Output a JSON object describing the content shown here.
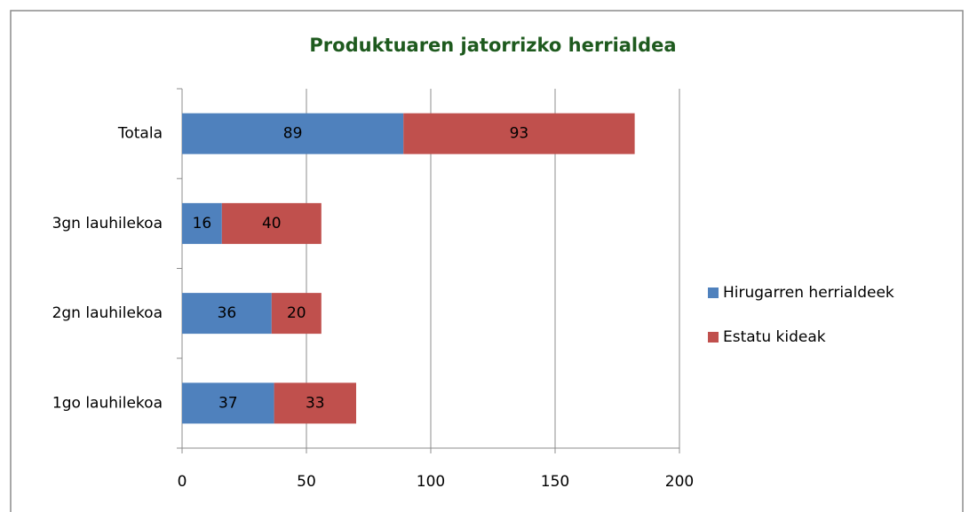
{
  "chart_data": {
    "type": "bar",
    "orientation": "horizontal",
    "stacked": true,
    "title": "Produktuaren jatorrizko herrialdea",
    "categories": [
      "Totala",
      "3gn lauhilekoa",
      "2gn lauhilekoa",
      "1go lauhilekoa"
    ],
    "series": [
      {
        "name": "Hirugarren herrialdeek",
        "color": "#4f81bd",
        "values": [
          89,
          16,
          36,
          37
        ]
      },
      {
        "name": "Estatu kideak",
        "color": "#c0504d",
        "values": [
          93,
          40,
          20,
          33
        ]
      }
    ],
    "xlim": [
      0,
      200
    ],
    "xticks": [
      0,
      50,
      100,
      150,
      200
    ],
    "grid": true,
    "legend": "right"
  }
}
